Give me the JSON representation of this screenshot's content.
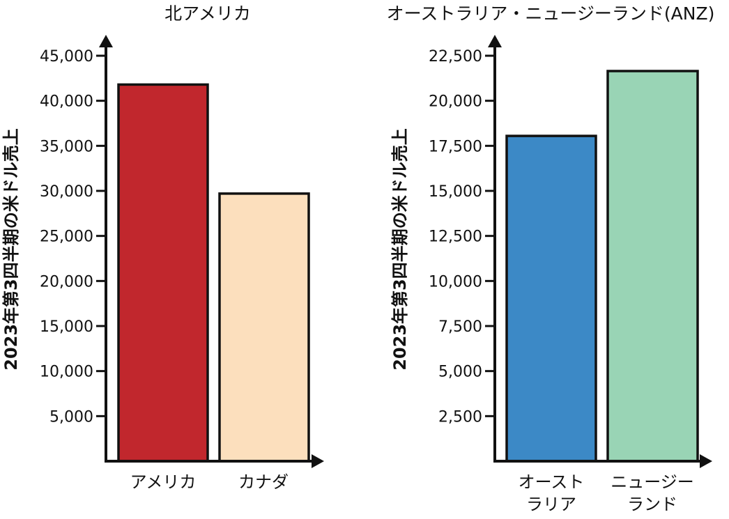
{
  "chart_data": [
    {
      "type": "bar",
      "title": "北アメリカ",
      "ylabel": "2023年第3四半期の米ドル売上",
      "categories": [
        [
          "アメリカ"
        ],
        [
          "カナダ"
        ]
      ],
      "values": [
        41800,
        29700
      ],
      "colors": [
        "#c1272d",
        "#fcdfbd"
      ],
      "yticks": [
        5000,
        10000,
        15000,
        20000,
        25000,
        30000,
        35000,
        40000,
        45000
      ],
      "ytick_labels": [
        "5,000",
        "10,000",
        "15,000",
        "20,000",
        "25,000",
        "30,000",
        "35,000",
        "40,000",
        "45,000"
      ],
      "ylim": [
        0,
        45000
      ],
      "grid": false,
      "legend": "none"
    },
    {
      "type": "bar",
      "title": "オーストラリア・ニュージーランド(ANZ)",
      "ylabel": "2023年第3四半期の米ドル売上",
      "categories": [
        [
          "オースト",
          "ラリア"
        ],
        [
          "ニュージー",
          "ランド"
        ]
      ],
      "values": [
        18050,
        21650
      ],
      "colors": [
        "#3c89c6",
        "#99d4b5"
      ],
      "yticks": [
        2500,
        5000,
        7500,
        10000,
        12500,
        15000,
        17500,
        20000,
        22500
      ],
      "ytick_labels": [
        "2,500",
        "5,000",
        "7,500",
        "10,000",
        "12,500",
        "15,000",
        "17,500",
        "20,000",
        "22,500"
      ],
      "ylim": [
        0,
        22500
      ],
      "grid": false,
      "legend": "none"
    }
  ]
}
